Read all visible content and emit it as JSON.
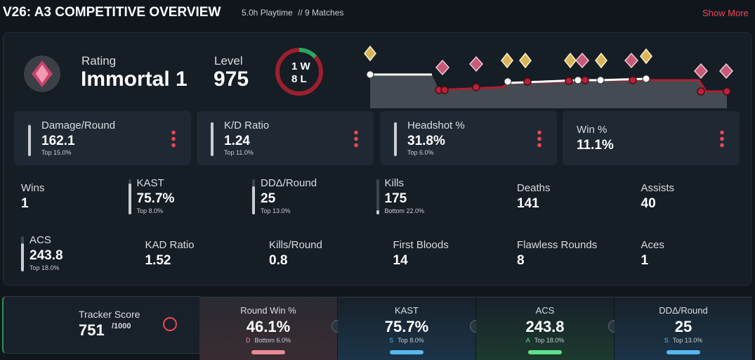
{
  "header": {
    "title": "V26: A3 COMPETITIVE OVERVIEW",
    "playtime": "5.0h Playtime",
    "matches": "// 9 Matches",
    "show_more": "Show More"
  },
  "summary": {
    "rating_label": "Rating",
    "rating": "Immortal 1",
    "level_label": "Level",
    "level": "975",
    "wins": "1 W",
    "losses": "8 L"
  },
  "cards": [
    {
      "label": "Damage/Round",
      "value": "162.1",
      "rank": "Top 15.0%"
    },
    {
      "label": "K/D Ratio",
      "value": "1.24",
      "rank": "Top 11.0%"
    },
    {
      "label": "Headshot %",
      "value": "31.8%",
      "rank": "Top 6.0%"
    },
    {
      "label": "Win %",
      "value": "11.1%"
    }
  ],
  "stats": [
    {
      "label": "Wins",
      "value": "1"
    },
    {
      "label": "KAST",
      "value": "75.7%",
      "rank": "Top 8.0%"
    },
    {
      "label": "DDΔ/Round",
      "value": "25",
      "rank": "Top 13.0%"
    },
    {
      "label": "Kills",
      "value": "175",
      "rank": "Bottom 22.0%"
    },
    {
      "label": "Deaths",
      "value": "141"
    },
    {
      "label": "Assists",
      "value": "40"
    },
    {
      "label": "ACS",
      "value": "243.8",
      "rank": "Top 18.0%"
    },
    {
      "label": "KAD Ratio",
      "value": "1.52"
    },
    {
      "label": "Kills/Round",
      "value": "0.8"
    },
    {
      "label": "First Bloods",
      "value": "14"
    },
    {
      "label": "Flawless Rounds",
      "value": "8"
    },
    {
      "label": "Aces",
      "value": "1"
    }
  ],
  "tracker": {
    "label": "Tracker Score",
    "value": "751",
    "max": "/1000"
  },
  "metrics": [
    {
      "label": "Round Win %",
      "value": "46.1%",
      "grade": "D",
      "rank": "Bottom 6.0%"
    },
    {
      "label": "KAST",
      "value": "75.7%",
      "grade": "S",
      "rank": "Top 8.0%"
    },
    {
      "label": "ACS",
      "value": "243.8",
      "grade": "A",
      "rank": "Top 18.0%"
    },
    {
      "label": "DDΔ/Round",
      "value": "25",
      "grade": "S",
      "rank": "Top 13.0%"
    }
  ]
}
